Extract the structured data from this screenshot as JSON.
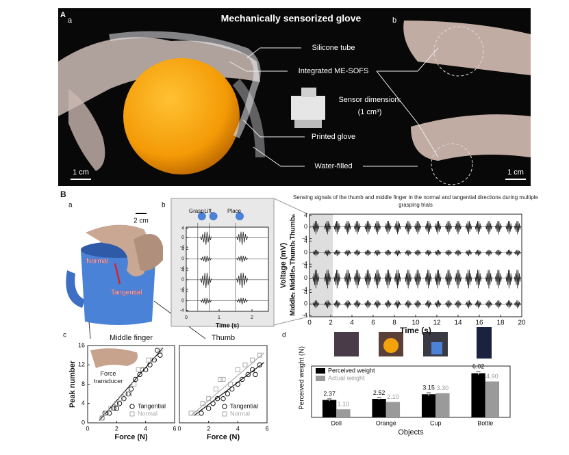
{
  "figure": {
    "panel_a": {
      "label": "A",
      "sub_a": "a",
      "sub_b": "b",
      "title": "Mechanically sensorized glove",
      "callouts": [
        "Silicone tube",
        "Integrated ME-SOFS",
        "Printed glove",
        "Water-filled"
      ],
      "sensor_dimension": "Sensor dimension:",
      "sensor_size": "(1 cm³)",
      "scale_left": "1 cm",
      "scale_right": "1 cm"
    },
    "panel_b": {
      "label": "B",
      "sub_a": "a",
      "sub_b": "b",
      "sub_c": "c",
      "sub_d": "d",
      "scale": "2 cm",
      "normal": "Normal",
      "tangential": "Tangential",
      "force_transducer": "Force transducer"
    }
  },
  "chart_data": [
    {
      "type": "line",
      "xlabel": "Time (s)",
      "xlim": [
        0,
        2.5
      ],
      "xticks": [
        0,
        1,
        2
      ],
      "ylim": [
        -4,
        4
      ],
      "yticks": [
        -4,
        0,
        4
      ],
      "events": [
        {
          "label": "Grasp",
          "x": 0.35
        },
        {
          "label": "Lift",
          "x": 0.7
        },
        {
          "label": "Place",
          "x": 1.5
        }
      ],
      "x": [
        0.6,
        1.7
      ],
      "series": [
        {
          "color": "#222222",
          "values": [
            3,
            3
          ]
        },
        {
          "color": "#222222",
          "values": [
            1.5,
            1.5
          ]
        },
        {
          "color": "#222222",
          "values": [
            3.5,
            3.5
          ]
        },
        {
          "color": "#222222",
          "values": [
            1.5,
            1.5
          ]
        }
      ]
    },
    {
      "type": "line",
      "title": "Sensing signals of the thumb and middle finger in the normal and tangential directions during multiple grasping trials",
      "xlabel": "Time (s)",
      "ylabel": "Voltage (mV)",
      "xlim": [
        0,
        20
      ],
      "xticks": [
        0,
        2,
        4,
        6,
        8,
        10,
        12,
        14,
        16,
        18,
        20
      ],
      "ylim": [
        -4,
        4
      ],
      "yticks": [
        -4,
        0,
        4
      ],
      "shaded_range": [
        0,
        2.2
      ],
      "x": [
        0.6,
        1.7,
        2.6,
        3.6,
        4.5,
        5.5,
        6.4,
        7.4,
        8.3,
        9.3,
        10.2,
        11.2,
        12.1,
        13.1,
        14.0,
        15.0,
        15.9,
        16.9,
        17.8,
        18.8,
        19.6
      ],
      "series": [
        {
          "name": "Thumbₙ",
          "color": "#222222",
          "values": [
            2.5,
            2.5,
            2.5,
            2.5,
            2.5,
            2.5,
            2.5,
            2.5,
            2.5,
            2.5,
            2.5,
            2.5,
            2.5,
            2.5,
            2.5,
            2.5,
            2.5,
            2.5,
            2.5,
            2.5,
            2.5
          ]
        },
        {
          "name": "Thumbₜ",
          "color": "#222222",
          "values": [
            1.2,
            1.2,
            1.2,
            1.2,
            1.2,
            1.2,
            1.2,
            1.2,
            1.2,
            1.2,
            1.2,
            1.2,
            1.2,
            1.2,
            1.2,
            1.2,
            1.2,
            1.2,
            1.2,
            1.2,
            1.2
          ]
        },
        {
          "name": "Middleₙ",
          "color": "#222222",
          "values": [
            3.5,
            3.5,
            3.5,
            3.5,
            3.5,
            3.5,
            3.5,
            3.5,
            3.5,
            3.5,
            3.5,
            3.5,
            3.5,
            3.5,
            3.5,
            3.5,
            3.5,
            3.5,
            3.5,
            3.5,
            3.5
          ]
        },
        {
          "name": "Middleₜ",
          "color": "#222222",
          "values": [
            1.5,
            1.5,
            1.5,
            1.5,
            1.5,
            1.5,
            1.5,
            1.5,
            1.5,
            1.5,
            1.5,
            1.5,
            1.5,
            1.5,
            1.5,
            1.5,
            1.5,
            1.5,
            1.5,
            1.5,
            1.5
          ]
        }
      ]
    },
    {
      "type": "scatter",
      "title": "Middle finger",
      "xlabel": "Force (N)",
      "ylabel": "Peak number",
      "xlim": [
        0,
        6
      ],
      "xticks": [
        0,
        2,
        4,
        6
      ],
      "ylim": [
        0,
        16
      ],
      "yticks": [
        0,
        4,
        8,
        12,
        16
      ],
      "series": [
        {
          "name": "Tangential",
          "color": "#111111",
          "marker": "circle",
          "x": [
            1,
            1.2,
            1.5,
            1.8,
            2,
            2,
            2.2,
            2.5,
            2.8,
            3,
            3.3,
            3.6,
            3.8,
            4,
            4.3,
            4.6,
            4.8,
            5
          ],
          "values": [
            1,
            2,
            2,
            3,
            4,
            3,
            4,
            5,
            6,
            7,
            9,
            10,
            11,
            11,
            12,
            13,
            15,
            14
          ]
        },
        {
          "name": "Normal",
          "color": "#aaaaaa",
          "marker": "square",
          "x": [
            1,
            1.3,
            1.6,
            2,
            2.3,
            2.6,
            2.9,
            3.2,
            3.5,
            3.8,
            4.2,
            4.5,
            5
          ],
          "values": [
            1,
            2,
            3,
            4,
            5,
            6,
            6,
            8,
            11,
            11,
            13,
            13,
            15
          ]
        }
      ],
      "fits": [
        {
          "color": "#111111",
          "x": [
            0.8,
            5.2
          ],
          "values": [
            0.5,
            15.5
          ]
        }
      ]
    },
    {
      "type": "scatter",
      "title": "Thumb",
      "xlabel": "Force (N)",
      "xlim": [
        0,
        6
      ],
      "xticks": [
        0,
        2,
        4,
        6
      ],
      "ylim": [
        0,
        16
      ],
      "series": [
        {
          "name": "Tangential",
          "color": "#111111",
          "marker": "circle",
          "x": [
            1.5,
            2,
            2.3,
            2.6,
            3,
            3.3,
            3.6,
            4,
            4.3,
            4.7,
            5,
            5.2,
            5.5
          ],
          "values": [
            2,
            3,
            4,
            5,
            5,
            6,
            7,
            8,
            9,
            10,
            11,
            10,
            12
          ]
        },
        {
          "name": "Normal",
          "color": "#aaaaaa",
          "marker": "square",
          "x": [
            0.8,
            1.2,
            1.6,
            2,
            2.5,
            2.8,
            3,
            3.5,
            4,
            4.5,
            5,
            5.5
          ],
          "values": [
            2,
            2,
            4,
            5,
            7,
            9,
            9,
            8,
            11,
            12,
            13,
            14
          ]
        }
      ],
      "fits": [
        {
          "color": "#111111",
          "x": [
            1,
            5.8
          ],
          "values": [
            1.5,
            12.5
          ]
        },
        {
          "color": "#aaaaaa",
          "x": [
            0.8,
            5.8
          ],
          "values": [
            1.5,
            14.5
          ]
        }
      ]
    },
    {
      "type": "bar",
      "xlabel": "Objects",
      "ylabel": "Perceived weight (N)",
      "ylim": [
        0,
        7
      ],
      "categories": [
        "Doll",
        "Orange",
        "Cup",
        "Bottle"
      ],
      "series": [
        {
          "name": "Perceived weight",
          "color": "#000000",
          "values": [
            2.37,
            2.52,
            3.15,
            6.02
          ],
          "errors": [
            0.15,
            0.15,
            0.2,
            0.2
          ]
        },
        {
          "name": "Actual weight",
          "color": "#9a9a9a",
          "values": [
            1.1,
            2.1,
            3.3,
            4.9
          ],
          "value_labels": [
            "1.10",
            "2.10",
            "3.30",
            "4.90"
          ]
        }
      ]
    }
  ]
}
